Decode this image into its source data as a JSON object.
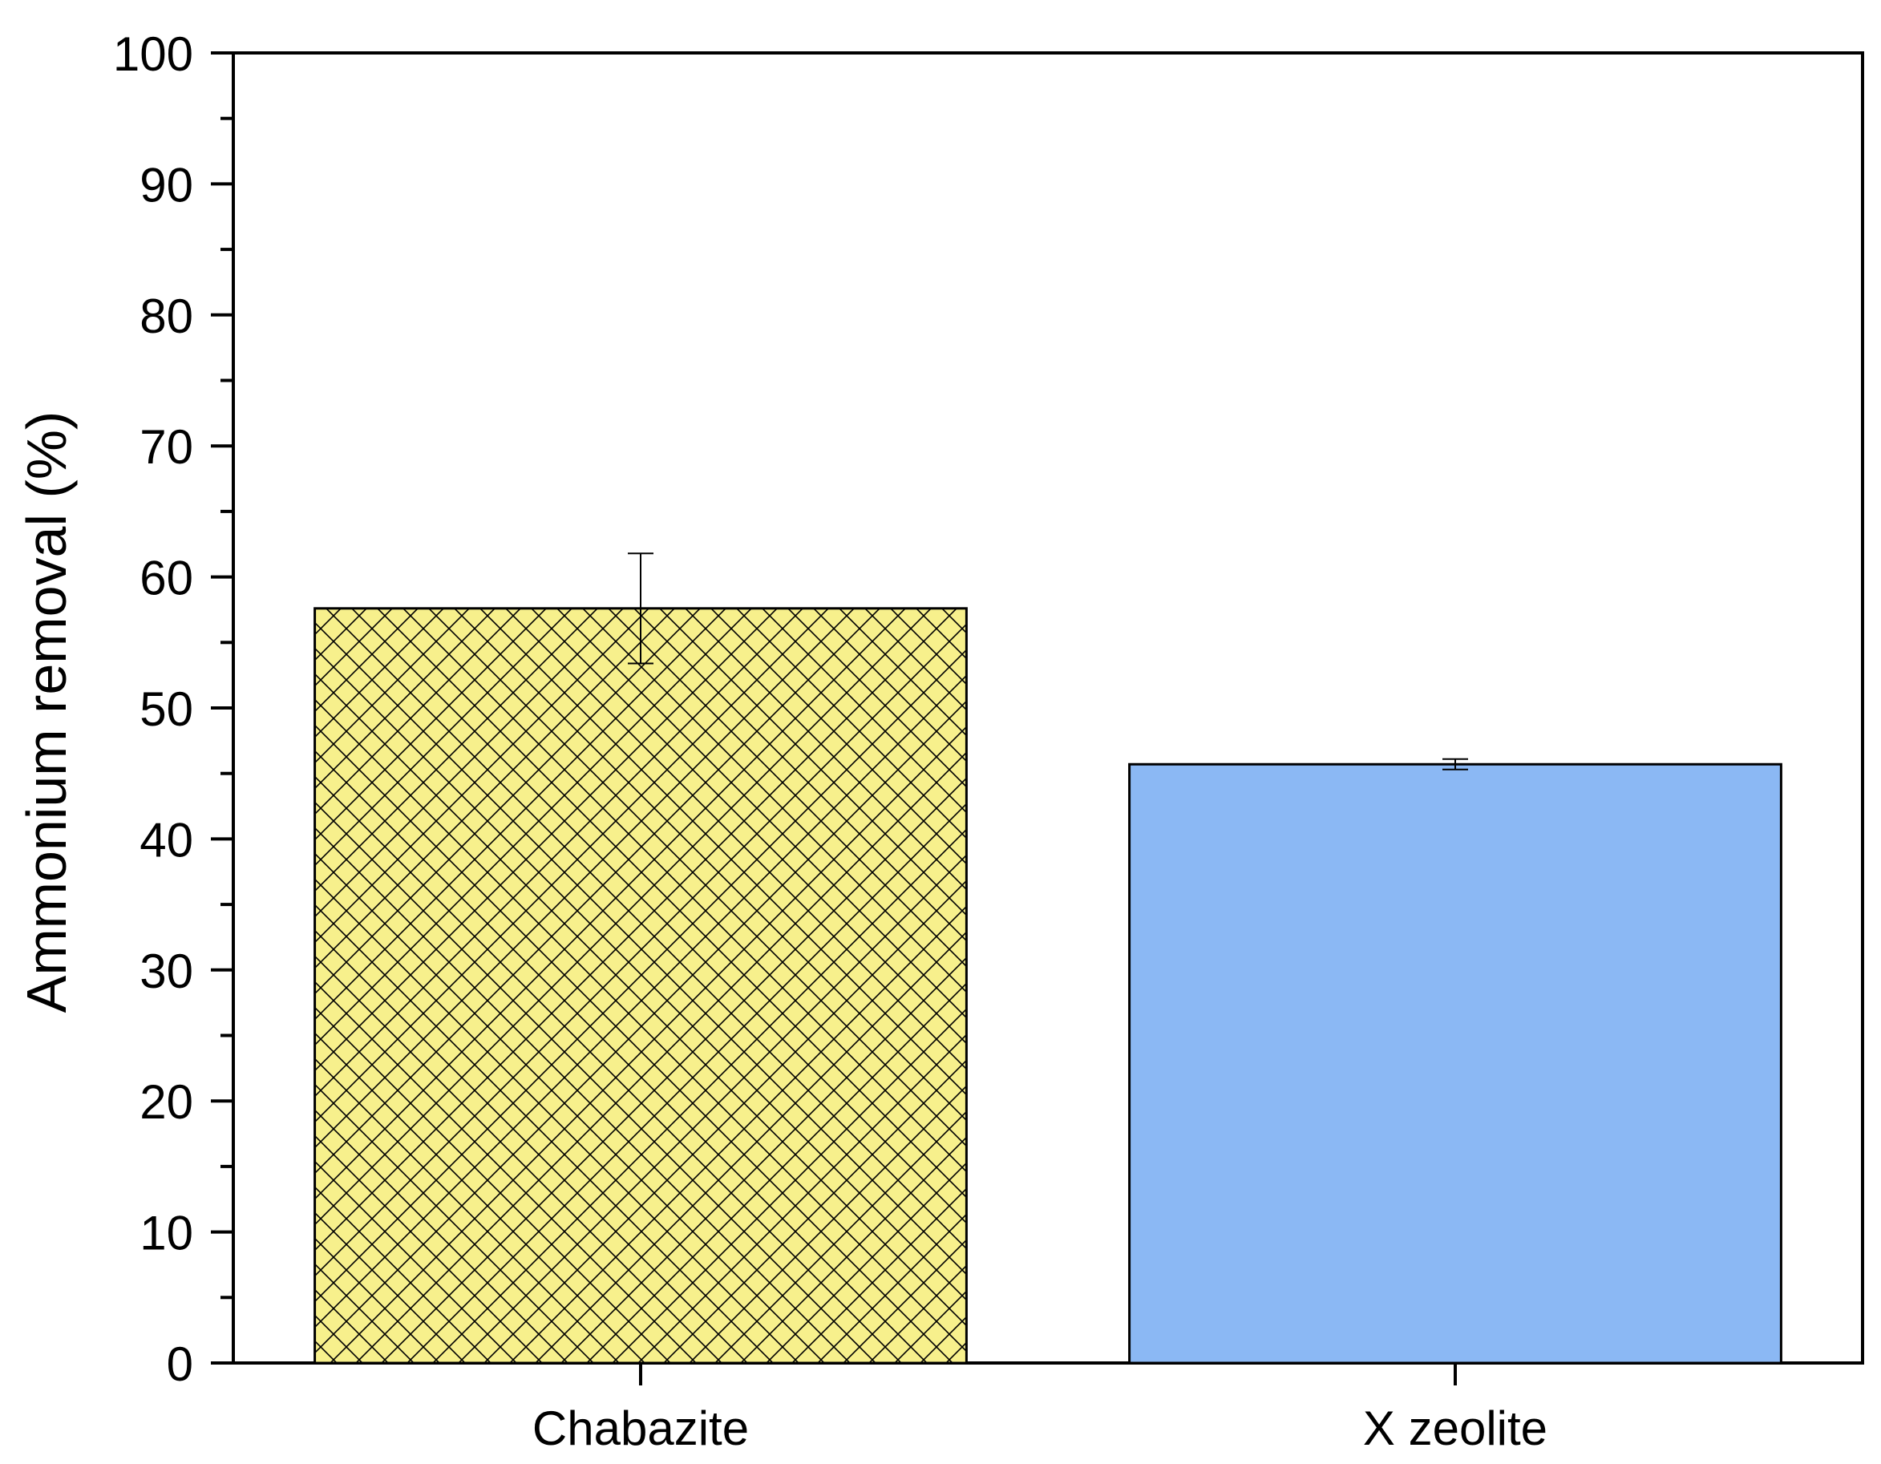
{
  "chart_data": {
    "type": "bar",
    "categories": [
      "Chabazite",
      "X zeolite"
    ],
    "values": [
      57.6,
      45.7
    ],
    "errors": [
      4.2,
      0.4
    ],
    "ylabel": "Ammonium removal (%)",
    "xlabel": "",
    "ylim": [
      0,
      100
    ],
    "yticks": [
      0,
      10,
      20,
      30,
      40,
      50,
      60,
      70,
      80,
      90,
      100
    ],
    "grid": false,
    "bar_styles": [
      {
        "fill": "#f7f08c",
        "pattern": "crosshatch"
      },
      {
        "fill": "#8bb8f4",
        "pattern": "none"
      }
    ]
  }
}
